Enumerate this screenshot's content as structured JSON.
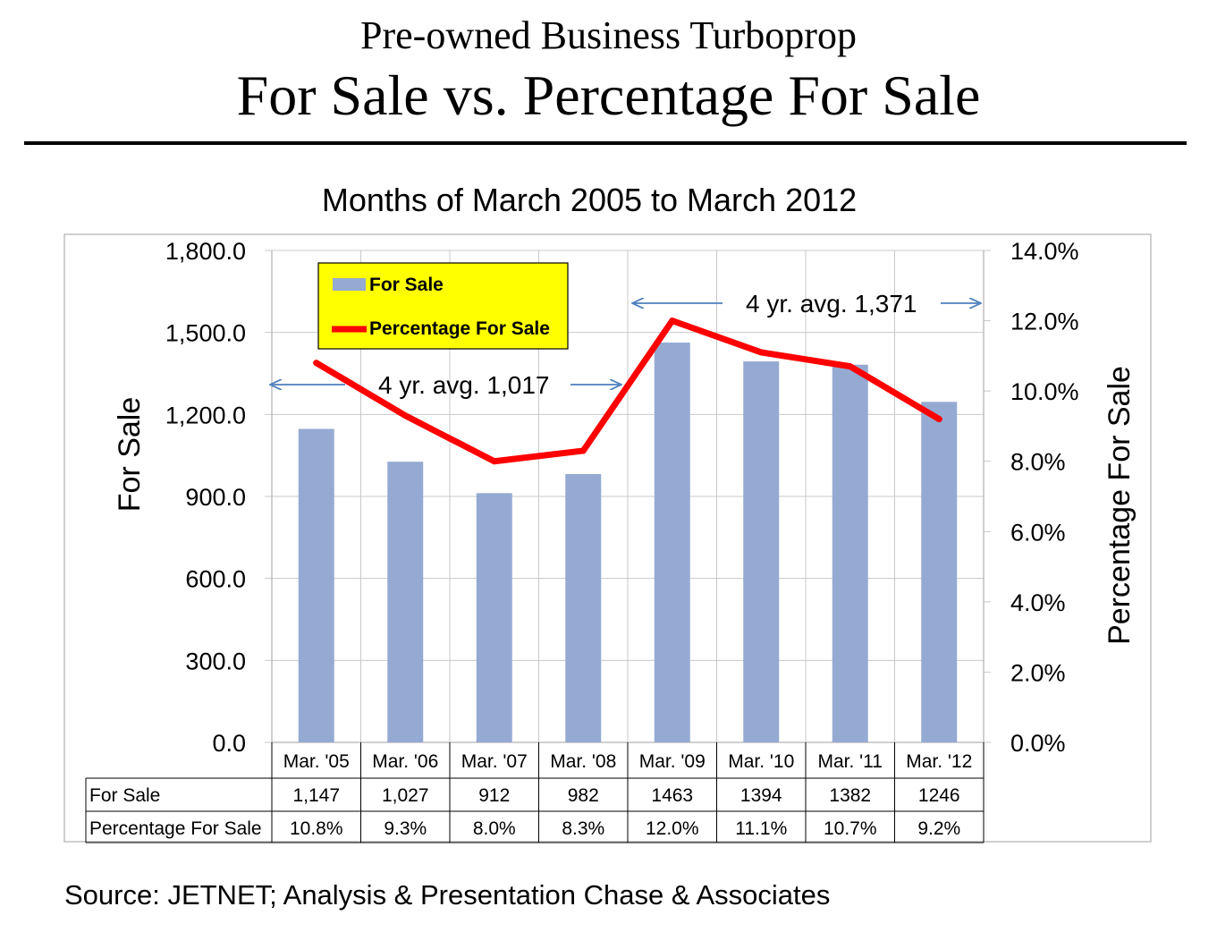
{
  "header": {
    "title_line1": "Pre-owned Business Turboprop",
    "title_line2": "For Sale vs. Percentage For Sale"
  },
  "footer": {
    "source": "Source: JETNET; Analysis & Presentation Chase & Associates"
  },
  "colors": {
    "bar": "#95aad2",
    "line": "#ff0000",
    "legend_bg": "#ffff00",
    "arrow": "#4f81bd",
    "grid": "#c8c8c8"
  },
  "chart_data": {
    "type": "bar",
    "title": "Months of March 2005 to March 2012",
    "categories": [
      "Mar. '05",
      "Mar. '06",
      "Mar. '07",
      "Mar. '08",
      "Mar. '09",
      "Mar. '10",
      "Mar. '11",
      "Mar. '12"
    ],
    "series": [
      {
        "name": "For Sale",
        "type": "bar",
        "axis": "left",
        "values": [
          1147,
          1027,
          912,
          982,
          1463,
          1394,
          1382,
          1246
        ],
        "labels": [
          "1,147",
          "1,027",
          "912",
          "982",
          "1463",
          "1394",
          "1382",
          "1246"
        ]
      },
      {
        "name": "Percentage For Sale",
        "type": "line",
        "axis": "right",
        "values": [
          10.8,
          9.3,
          8.0,
          8.3,
          12.0,
          11.1,
          10.7,
          9.2
        ],
        "labels": [
          "10.8%",
          "9.3%",
          "8.0%",
          "8.3%",
          "12.0%",
          "11.1%",
          "10.7%",
          "9.2%"
        ]
      }
    ],
    "ylabel": "For Sale",
    "y2label": "Percentage For Sale",
    "ylim": [
      0,
      1800
    ],
    "y2lim": [
      0,
      14
    ],
    "yticks": [
      "0.0",
      "300.0",
      "600.0",
      "900.0",
      "1,200.0",
      "1,500.0",
      "1,800.0"
    ],
    "y2ticks": [
      "0.0%",
      "2.0%",
      "4.0%",
      "6.0%",
      "8.0%",
      "10.0%",
      "12.0%",
      "14.0%"
    ],
    "grid": true,
    "legend_position": "top-left",
    "data_table": true,
    "annotations": [
      {
        "text": "4 yr. avg. 1,017"
      },
      {
        "text": "4 yr. avg. 1,371"
      }
    ]
  }
}
